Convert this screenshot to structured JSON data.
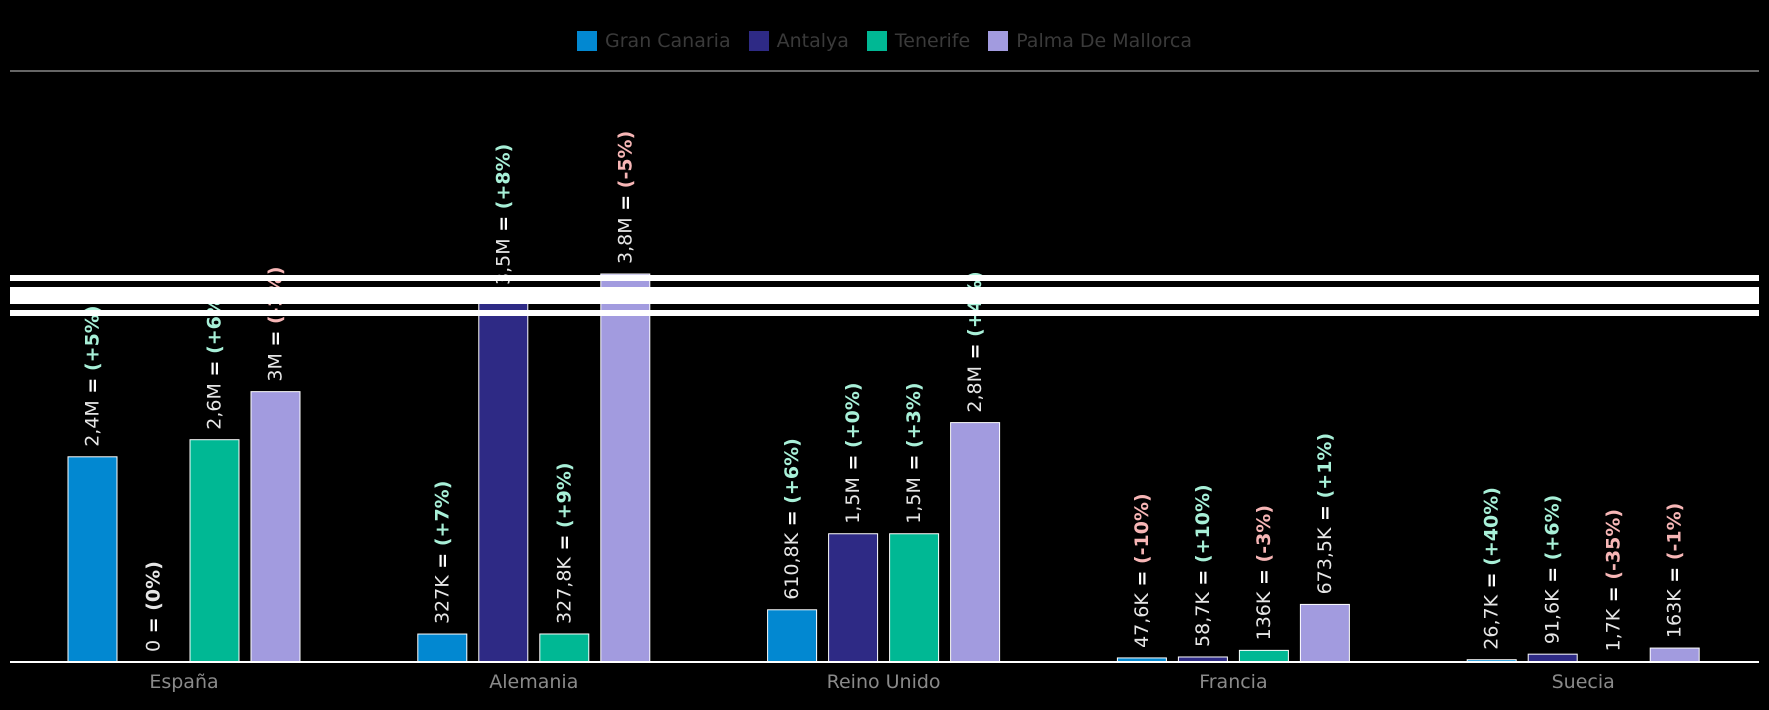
{
  "chart_data": {
    "type": "bar",
    "categories": [
      "España",
      "Alemania",
      "Reino Unido",
      "Francia",
      "Suecia"
    ],
    "series": [
      {
        "name": "Gran Canaria",
        "color": "#0288d1",
        "values": [
          2400000,
          327000,
          610800,
          47600,
          26700
        ],
        "labels": [
          "2,4M",
          "327K",
          "610,8K",
          "47,6K",
          "26,7K"
        ],
        "changes": [
          "(+5%)",
          "(+7%)",
          "(+6%)",
          "(-10%)",
          "(+40%)"
        ]
      },
      {
        "name": "Antalya",
        "color": "#2e2a85",
        "values": [
          0,
          3500000,
          1500000,
          58700,
          91600
        ],
        "labels": [
          "0",
          "3,5M",
          "1,5M",
          "58,7K",
          "91,6K"
        ],
        "changes": [
          "(0%)",
          "(+8%)",
          "(+0%)",
          "(+10%)",
          "(+6%)"
        ]
      },
      {
        "name": "Tenerife",
        "color": "#00b894",
        "values": [
          2600000,
          327800,
          1500000,
          136000,
          1700
        ],
        "labels": [
          "2,6M",
          "327,8K",
          "1,5M",
          "136K",
          "1,7K"
        ],
        "changes": [
          "(+6%)",
          "(+9%)",
          "(+3%)",
          "(-3%)",
          "(-35%)"
        ]
      },
      {
        "name": "Palma De Mallorca",
        "color": "#a29bdf",
        "values": [
          3000000,
          3800000,
          2800000,
          673500,
          163000
        ],
        "labels": [
          "3M",
          "3,8M",
          "2,8M",
          "673,5K",
          "163K"
        ],
        "changes": [
          "(-1%)",
          "(-5%)",
          "(+4%)",
          "(+1%)",
          "(-1%)"
        ]
      }
    ],
    "axis_break": true,
    "legend_position": "top-center",
    "colors": {
      "positive": "#a8f0d8",
      "negative": "#f7b6b6",
      "neutral": "#e6e6e6",
      "axis": "#cccccc",
      "category_label": "#8a8a8a"
    }
  }
}
